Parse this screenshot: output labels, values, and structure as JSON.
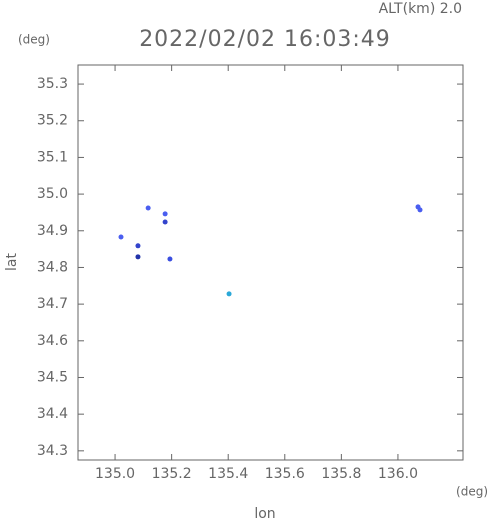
{
  "chart_data": {
    "type": "scatter",
    "title": "2022/02/02 16:03:49",
    "subtitle": "ALT(km) 2.0",
    "y_unit": "(deg)",
    "x_unit": "(deg)",
    "xlabel": "lon",
    "ylabel": "lat",
    "x": [
      135.021,
      135.081,
      135.081,
      135.117,
      135.177,
      135.177,
      135.194,
      135.403,
      136.071,
      136.078
    ],
    "values": [
      34.883,
      34.859,
      34.829,
      34.962,
      34.946,
      34.924,
      34.823,
      34.728,
      34.965,
      34.957
    ],
    "colors": [
      "#4a5ef0",
      "#3344cc",
      "#2233aa",
      "#4a5ef0",
      "#4a5ef0",
      "#3344cc",
      "#3a4ee0",
      "#2aa8d8",
      "#4a5ef0",
      "#4a5ef0"
    ],
    "xlim": [
      134.869,
      136.23
    ],
    "ylim": [
      34.275,
      35.352
    ],
    "xticks": [
      {
        "value": 135,
        "label": "135.0"
      },
      135.2,
      135.4,
      135.6,
      135.8,
      {
        "value": 136,
        "label": "136.0"
      }
    ],
    "yticks": [
      34.3,
      34.4,
      34.5,
      34.6,
      34.7,
      34.8,
      34.9,
      {
        "value": 35,
        "label": "35.0"
      },
      35.1,
      35.2,
      35.3
    ]
  }
}
